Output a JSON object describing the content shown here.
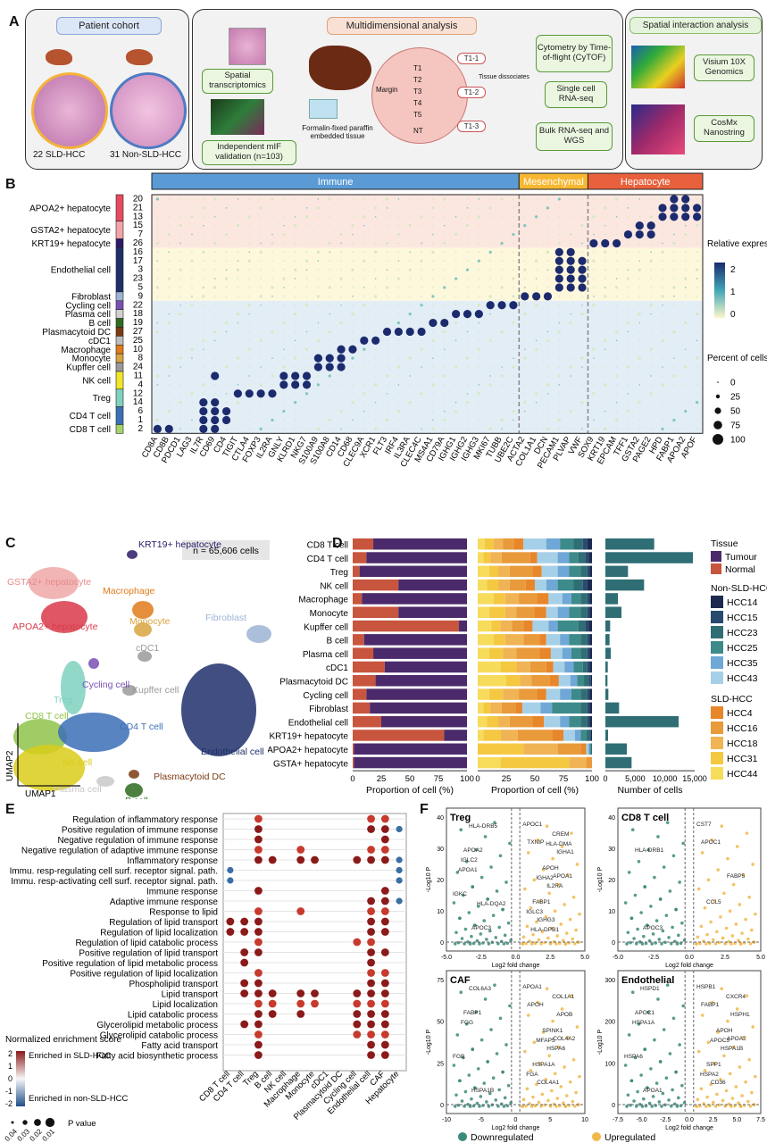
{
  "panels": [
    "A",
    "B",
    "C",
    "D",
    "E",
    "F"
  ],
  "panelA": {
    "cohort_title": "Patient cohort",
    "cohort1": "22 SLD-HCC",
    "cohort2": "31 Non-SLD-HCC",
    "multi_title": "Multidimensional analysis",
    "spatial_tx": "Spatial transcriptomics",
    "mif": "Independent mIF validation (n=103)",
    "ffpe": "Formalin-fixed paraffin embedded tissue",
    "margin": "Margin",
    "regions": [
      "T1",
      "T2",
      "T3",
      "T4",
      "T5",
      "NT"
    ],
    "tags": [
      "T1-1",
      "T1-2",
      "T1-3"
    ],
    "tissue_dissociates": "Tissue dissociates",
    "cytof": "Cytometry by Time-of-flight (CyTOF)",
    "scrna": "Single cell RNA-seq",
    "bulk": "Bulk RNA-seq and WGS",
    "spatial_title": "Spatial interaction analysis",
    "visium": "Visium 10X Genomics",
    "cosmx": "CosMx Nanostring"
  },
  "panelB": {
    "groups": [
      {
        "name": "Immune",
        "color": "#5b9bd5"
      },
      {
        "name": "Mesenchymal",
        "color": "#f7b731"
      },
      {
        "name": "Hepatocyte",
        "color": "#e8613c"
      }
    ],
    "legend_title": "Relative expression",
    "legend_ticks": [
      "2",
      "1",
      "0"
    ],
    "size_title": "Percent of cells",
    "size_ticks": [
      "0",
      "25",
      "50",
      "75",
      "100"
    ],
    "genes": [
      "CD8A",
      "CD8B",
      "PDCD1",
      "LAG3",
      "IL7R",
      "CD69",
      "CD4",
      "TIGIT",
      "CTLA4",
      "FOXP3",
      "IL2RA",
      "GNLY",
      "KLRD1",
      "NKG7",
      "S100A9",
      "S100A8",
      "CD14",
      "CD68",
      "CLEC9A",
      "XCR1",
      "FLT3",
      "IRF4",
      "IL3RA",
      "CLEC4C",
      "MS4A1",
      "CD79A",
      "IGHG1",
      "IGHG2",
      "IGHG3",
      "MKI67",
      "TUBB",
      "UBE2C",
      "ACTA2",
      "COL1A1",
      "DCN",
      "PECAM1",
      "PLVAP",
      "VWF",
      "SOX9",
      "KRT19",
      "EPCAM",
      "TFF1",
      "GSTA2",
      "PAGE2",
      "HPD",
      "FABP1",
      "APOA2",
      "APOF"
    ],
    "clusters": [
      {
        "label": "APOA2+ hepatocyte",
        "ids": [
          "20",
          "21",
          "13"
        ],
        "color": "#e84a5f"
      },
      {
        "label": "GSTA2+ hepatocyte",
        "ids": [
          "15",
          "7"
        ],
        "color": "#f4a3a8"
      },
      {
        "label": "KRT19+ hepatocyte",
        "ids": [
          "26"
        ],
        "color": "#2d1b69"
      },
      {
        "label": "Endothelial cell",
        "ids": [
          "16",
          "17",
          "3",
          "23",
          "5"
        ],
        "color": "#1f2f6b"
      },
      {
        "label": "Fibroblast",
        "ids": [
          "9"
        ],
        "color": "#9db4d4"
      },
      {
        "label": "Cycling cell",
        "ids": [
          "22"
        ],
        "color": "#7a4fb5"
      },
      {
        "label": "Plasma cell",
        "ids": [
          "18"
        ],
        "color": "#d0d0d0"
      },
      {
        "label": "B cell",
        "ids": [
          "19"
        ],
        "color": "#2e6b1f"
      },
      {
        "label": "Plasmacytoid DC",
        "ids": [
          "27"
        ],
        "color": "#7a3b12"
      },
      {
        "label": "cDC1",
        "ids": [
          "25"
        ],
        "color": "#bdbdbd"
      },
      {
        "label": "Macrophage",
        "ids": [
          "10"
        ],
        "color": "#e07b1a"
      },
      {
        "label": "Monocyte",
        "ids": [
          "8"
        ],
        "color": "#d9a441"
      },
      {
        "label": "Kupffer cell",
        "ids": [
          "24"
        ],
        "color": "#9a9a9a"
      },
      {
        "label": "NK cell",
        "ids": [
          "11",
          "4"
        ],
        "color": "#f2e52a"
      },
      {
        "label": "Treg",
        "ids": [
          "12",
          "14"
        ],
        "color": "#7fd1c0"
      },
      {
        "label": "CD4 T cell",
        "ids": [
          "6",
          "1"
        ],
        "color": "#3b6fb6"
      },
      {
        "label": "CD8 T cell",
        "ids": [
          "2"
        ],
        "color": "#a5d46a"
      }
    ]
  },
  "panelC": {
    "n_label": "n = 65,606 cells",
    "xlabel": "UMAP1",
    "ylabel": "UMAP2",
    "labels": [
      {
        "text": "KRT19+ hepatocyte",
        "color": "#2d1b69"
      },
      {
        "text": "GSTA2+ hepatocyte",
        "color": "#e88a8a"
      },
      {
        "text": "APOA2+ hepatocyte",
        "color": "#d93a4a"
      },
      {
        "text": "Macrophage",
        "color": "#e07b1a"
      },
      {
        "text": "Monocyte",
        "color": "#d9a441"
      },
      {
        "text": "Fibroblast",
        "color": "#9db4d4"
      },
      {
        "text": "Cycling cell",
        "color": "#7a4fb5"
      },
      {
        "text": "cDC1",
        "color": "#9a9a9a"
      },
      {
        "text": "Treg",
        "color": "#7fd1c0"
      },
      {
        "text": "Kupffer cell",
        "color": "#9a9a9a"
      },
      {
        "text": "CD8 T cell",
        "color": "#8fc34a"
      },
      {
        "text": "CD4 T cell",
        "color": "#3b6fb6"
      },
      {
        "text": "Endothelial cell",
        "color": "#1f2f6b"
      },
      {
        "text": "NK cell",
        "color": "#d9cc1a"
      },
      {
        "text": "Plasmacytoid DC",
        "color": "#7a3b12"
      },
      {
        "text": "B cell",
        "color": "#2e6b1f"
      },
      {
        "text": "Plasma cell",
        "color": "#c8c8c8"
      }
    ]
  },
  "chart_data": [
    {
      "type": "bar",
      "orientation": "horizontal-stacked",
      "xlabel": "Proportion of cell (%)",
      "xticks": [
        "0",
        "25",
        "50",
        "75",
        "100"
      ],
      "categories": [
        "CD8 T cell",
        "CD4 T cell",
        "Treg",
        "NK cell",
        "Macrophage",
        "Monocyte",
        "Kupffer cell",
        "B cell",
        "Plasma cell",
        "cDC1",
        "Plasmacytoid DC",
        "Cycling cell",
        "Fibroblast",
        "Endothelial cell",
        "KRT19+ hepatocyte",
        "APOA2+ hepatocyte",
        "GSTA+ hepatocyte"
      ],
      "series": [
        {
          "name": "Normal",
          "color": "#c8553d",
          "values": [
            18,
            12,
            6,
            40,
            8,
            40,
            93,
            10,
            18,
            28,
            20,
            12,
            15,
            25,
            80,
            1,
            1
          ]
        },
        {
          "name": "Tumour",
          "color": "#4b2a6b",
          "values": [
            82,
            88,
            94,
            60,
            92,
            60,
            7,
            90,
            82,
            72,
            80,
            88,
            85,
            75,
            20,
            99,
            99
          ]
        }
      ]
    },
    {
      "type": "bar",
      "orientation": "horizontal-stacked",
      "xlabel": "Proportion of cell (%)",
      "xticks": [
        "0",
        "25",
        "50",
        "75",
        "100"
      ],
      "categories": [
        "CD8 T cell",
        "CD4 T cell",
        "Treg",
        "NK cell",
        "Macrophage",
        "Monocyte",
        "Kupffer cell",
        "B cell",
        "Plasma cell",
        "cDC1",
        "Plasmacytoid DC",
        "Cycling cell",
        "Fibroblast",
        "Endothelial cell",
        "KRT19+ hepatocyte",
        "APOA2+ hepatocyte",
        "GSTA+ hepatocyte"
      ],
      "series": [
        {
          "name": "HCC44",
          "color": "#f7dc5c",
          "values": [
            6,
            5,
            10,
            8,
            14,
            10,
            12,
            14,
            10,
            20,
            25,
            10,
            5,
            8,
            5,
            0,
            20
          ]
        },
        {
          "name": "HCC31",
          "color": "#f5c842",
          "values": [
            8,
            6,
            8,
            10,
            10,
            14,
            8,
            10,
            12,
            14,
            12,
            12,
            6,
            10,
            15,
            40,
            60
          ]
        },
        {
          "name": "HCC18",
          "color": "#f0b455",
          "values": [
            8,
            10,
            10,
            10,
            12,
            10,
            10,
            16,
            12,
            12,
            10,
            14,
            10,
            10,
            15,
            30,
            15
          ]
        },
        {
          "name": "HCC16",
          "color": "#e99a3a",
          "values": [
            10,
            25,
            20,
            14,
            16,
            16,
            10,
            14,
            20,
            14,
            16,
            16,
            12,
            20,
            30,
            20,
            5
          ]
        },
        {
          "name": "HCC4",
          "color": "#e8862a",
          "values": [
            8,
            6,
            8,
            8,
            10,
            10,
            8,
            6,
            10,
            6,
            8,
            8,
            6,
            10,
            10,
            5,
            0
          ]
        },
        {
          "name": "HCC43",
          "color": "#a6d0e8",
          "values": [
            20,
            18,
            14,
            10,
            12,
            10,
            14,
            12,
            10,
            10,
            10,
            12,
            16,
            14,
            10,
            2,
            0
          ]
        },
        {
          "name": "HCC35",
          "color": "#6fa8d6",
          "values": [
            12,
            10,
            10,
            10,
            8,
            10,
            8,
            8,
            8,
            8,
            6,
            10,
            10,
            8,
            5,
            1,
            0
          ]
        },
        {
          "name": "HCC25",
          "color": "#3d8a8a",
          "values": [
            12,
            8,
            10,
            14,
            8,
            10,
            18,
            10,
            8,
            8,
            6,
            8,
            25,
            10,
            5,
            1,
            0
          ]
        },
        {
          "name": "HCC23",
          "color": "#2f6e74",
          "values": [
            8,
            6,
            6,
            8,
            6,
            6,
            6,
            6,
            6,
            4,
            4,
            6,
            6,
            6,
            3,
            1,
            0
          ]
        },
        {
          "name": "HCC15",
          "color": "#274a6e",
          "values": [
            4,
            3,
            2,
            4,
            2,
            2,
            3,
            2,
            2,
            2,
            2,
            2,
            2,
            2,
            1,
            0,
            0
          ]
        },
        {
          "name": "HCC14",
          "color": "#1d2a4f",
          "values": [
            4,
            3,
            2,
            4,
            2,
            2,
            3,
            2,
            2,
            2,
            1,
            2,
            2,
            2,
            1,
            0,
            0
          ]
        }
      ]
    },
    {
      "type": "bar",
      "orientation": "horizontal",
      "xlabel": "Number of cells",
      "xticks": [
        "0",
        "5,000",
        "10,000",
        "15,000"
      ],
      "xlim": [
        0,
        15000
      ],
      "categories": [
        "CD8 T cell",
        "CD4 T cell",
        "Treg",
        "NK cell",
        "Macrophage",
        "Monocyte",
        "Kupffer cell",
        "B cell",
        "Plasma cell",
        "cDC1",
        "Plasmacytoid DC",
        "Cycling cell",
        "Fibroblast",
        "Endothelial cell",
        "KRT19+ hepatocyte",
        "APOA2+ hepatocyte",
        "GSTA+ hepatocyte"
      ],
      "values": [
        8200,
        14700,
        3800,
        6500,
        2100,
        2700,
        800,
        700,
        900,
        400,
        350,
        500,
        2300,
        12300,
        450,
        3600,
        4400
      ]
    }
  ],
  "panelD_legend": {
    "tissue_title": "Tissue",
    "tissue": [
      {
        "name": "Tumour",
        "color": "#4b2a6b"
      },
      {
        "name": "Normal",
        "color": "#c8553d"
      }
    ],
    "non_sld_title": "Non-SLD-HCC",
    "non_sld": [
      {
        "name": "HCC14",
        "color": "#1d2a4f"
      },
      {
        "name": "HCC15",
        "color": "#274a6e"
      },
      {
        "name": "HCC23",
        "color": "#2f6e74"
      },
      {
        "name": "HCC25",
        "color": "#3d8a8a"
      },
      {
        "name": "HCC35",
        "color": "#6fa8d6"
      },
      {
        "name": "HCC43",
        "color": "#a6d0e8"
      }
    ],
    "sld_title": "SLD-HCC",
    "sld": [
      {
        "name": "HCC4",
        "color": "#e8862a"
      },
      {
        "name": "HCC16",
        "color": "#e99a3a"
      },
      {
        "name": "HCC18",
        "color": "#f0b455"
      },
      {
        "name": "HCC31",
        "color": "#f5c842"
      },
      {
        "name": "HCC44",
        "color": "#f7dc5c"
      }
    ]
  },
  "panelE": {
    "terms": [
      "Regulation of inflammatory response",
      "Positive regulation of immune response",
      "Negative regulation of immune response",
      "Negative regulation of adaptive immune response",
      "Inflammatory response",
      "Immu. resp-regulating cell surf. receptor signal. path.",
      "Immu. resp-activating cell surf. receptor signal. path.",
      "Immune response",
      "Adaptive immune response",
      "Response to lipid",
      "Regulation of lipid transport",
      "Regulation of lipid localization",
      "Regulation of lipid catabolic process",
      "Positive regulation of lipid transport",
      "Positive regulation of lipid metabolic process",
      "Positive regulation of lipid localization",
      "Phospholipid transport",
      "Lipid transport",
      "Lipid localization",
      "Lipid catabolic process",
      "Glycerolipid metabolic process",
      "Glycerolipid catabolic process",
      "Fatty acid transport",
      "Fatty acid biosynthetic process"
    ],
    "celltypes": [
      "CD8 T cell",
      "CD4 T cell",
      "Treg",
      "B cell",
      "NK cell",
      "Macrophage",
      "Monocyte",
      "cDC1",
      "Plasmacytoid DC",
      "Cycling cell",
      "Endothelial cell",
      "CAF",
      "Hepatocyte"
    ],
    "legend_title": "Normalized enrichment score",
    "legend_up": "Enriched in SLD-HCC",
    "legend_down": "Enriched in non-SLD-HCC",
    "legend_ticks": [
      "2",
      "1",
      "0",
      "-1",
      "-2"
    ],
    "pval_ticks": [
      "0.04",
      "0.03",
      "0.02",
      "0.01"
    ],
    "pval_label": "P value"
  },
  "panelF": {
    "plots": [
      {
        "title": "Treg",
        "xticks": [
          "-5.0",
          "-2.5",
          "0.0",
          "2.5",
          "5.0"
        ],
        "yticks": [
          "0",
          "10",
          "20",
          "30",
          "40"
        ],
        "labels": [
          "APOC1",
          "APOA2",
          "APOA1",
          "FABP1",
          "APOC3",
          "TXNIP",
          "APOH",
          "IGKC",
          "IGHG3",
          "CREM",
          "IGLC2",
          "IL2RA",
          "IGLC3",
          "HLA-DRB5",
          "IGHA1",
          "IGHA2",
          "HLA-DQA2",
          "HLA-DPB1",
          "HLA-DMA",
          "APOA1"
        ]
      },
      {
        "title": "CD8 T cell",
        "xticks": [
          "-5.0",
          "-2.5",
          "0.0",
          "2.5",
          "5.0"
        ],
        "yticks": [
          "0",
          "10",
          "20",
          "30",
          "40"
        ],
        "labels": [
          "CST7",
          "HLA-DRB1",
          "FABP5",
          "CCL5",
          "APOC3",
          "APOC1"
        ]
      },
      {
        "title": "CAF",
        "xticks": [
          "-10",
          "-5",
          "0",
          "5",
          "10"
        ],
        "yticks": [
          "0",
          "25",
          "50",
          "75"
        ],
        "labels": [
          "APOA1",
          "FABP1",
          "COL4A2",
          "HSPA1A",
          "HSPA1B",
          "APOH",
          "SPINK1",
          "FGB",
          "COL4A1",
          "COL1A1",
          "FGG",
          "HSPA6",
          "FGA",
          "COL6A3",
          "APOB",
          "MFAP5"
        ]
      },
      {
        "title": "Endothelial",
        "xticks": [
          "-7.5",
          "-5.0",
          "-2.5",
          "0.0",
          "2.5",
          "5.0",
          "7.5"
        ],
        "yticks": [
          "0",
          "100",
          "200",
          "300"
        ],
        "labels": [
          "HSPB1",
          "APOC1",
          "APOA2",
          "SPP1",
          "APOA1",
          "FABP1",
          "APOH",
          "HSPA6",
          "CD36",
          "CXCR4",
          "HSPA1A",
          "HSPA1B",
          "HSPA2",
          "HSPD1",
          "HSPH1",
          "APOC3"
        ]
      }
    ],
    "xlabel": "Log2 fold change",
    "ylabel": "-Log10 P",
    "legend": [
      {
        "name": "Downregulated",
        "color": "#3b8a7a"
      },
      {
        "name": "Upregulated",
        "color": "#f0b84a"
      }
    ]
  }
}
